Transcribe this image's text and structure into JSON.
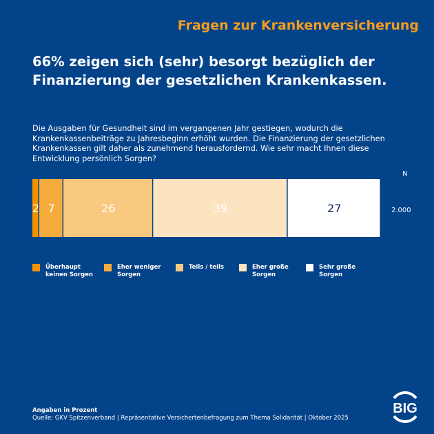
{
  "header": {
    "topic": "Fragen zur Krankenversicherung",
    "headline": "66% zeigen sich (sehr) besorgt bezüglich der Finanzierung der gesetzlichen Krankenkassen.",
    "question": "Die Ausgaben für Gesundheit sind im vergangenen Jahr gestiegen, wodurch die Krankenkassenbeiträge zu Jahresbeginn erhöht wurden. Die Finanzierung der gesetzlichen Krankenkassen gilt daher als zunehmend herausfordernd. Wie sehr macht Ihnen diese Entwicklung persönlich Sorgen?"
  },
  "chart_data": {
    "type": "bar",
    "orientation": "horizontal-stacked",
    "unit": "Prozent",
    "n_label": "N",
    "n_value": "2.000",
    "series": [
      {
        "name": "Überhaupt keinen Sorgen",
        "value": 2,
        "color": "#f39200",
        "label_color": "#ffffff"
      },
      {
        "name": "Eher weniger Sorgen",
        "value": 7,
        "color": "#f5ac3d",
        "label_color": "#ffffff"
      },
      {
        "name": "Teils / teils",
        "value": 26,
        "color": "#f9c97f",
        "label_color": "#ffffff"
      },
      {
        "name": "Eher große Sorgen",
        "value": 39,
        "color": "#fce4c0",
        "label_color": "#ffffff"
      },
      {
        "name": "Sehr große Sorgen",
        "value": 27,
        "color": "#ffffff",
        "label_color": "#0b2a5a"
      }
    ]
  },
  "legend": [
    {
      "line1": "Überhaupt",
      "line2": "keinen Sorgen"
    },
    {
      "line1": "Eher weniger",
      "line2": "Sorgen"
    },
    {
      "line1": "Teils / teils",
      "line2": ""
    },
    {
      "line1": "Eher große",
      "line2": "Sorgen"
    },
    {
      "line1": "Sehr große",
      "line2": "Sorgen"
    }
  ],
  "footer": {
    "note": "Angaben in Prozent",
    "source": "Quelle: GKV Spitzenverband | Repräsentative Versichertenbefragung zum Thema Solidarität | Oktober 2025"
  },
  "logo": {
    "text": "BIG"
  },
  "colors": {
    "background": "#03438a",
    "accent": "#f39c1e"
  }
}
